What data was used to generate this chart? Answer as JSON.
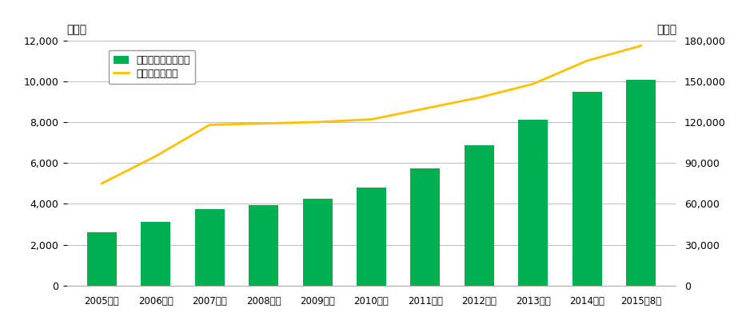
{
  "categories": [
    "2005年度",
    "2006年度",
    "2007年度",
    "2008年度",
    "2009年度",
    "2010年度",
    "2011年度",
    "2012年度",
    "2013年度",
    "2014年度",
    "2015年8月"
  ],
  "bar_values": [
    2600,
    3100,
    3750,
    3950,
    4250,
    4800,
    5750,
    6850,
    8100,
    9500,
    10050
  ],
  "line_values": [
    75000,
    95000,
    118000,
    119000,
    120000,
    122000,
    130000,
    138000,
    148000,
    165000,
    176000
  ],
  "bar_color": "#00B050",
  "line_color": "#FFC000",
  "bar_label": "期末事業地数（地）",
  "line_label": "期末台数（台）",
  "left_ylabel": "（地）",
  "right_ylabel": "（台）",
  "left_ylim": [
    0,
    12000
  ],
  "right_ylim": [
    0,
    180000
  ],
  "left_yticks": [
    0,
    2000,
    4000,
    6000,
    8000,
    10000,
    12000
  ],
  "right_yticks": [
    0,
    30000,
    60000,
    90000,
    120000,
    150000,
    180000
  ],
  "bg_color": "#ffffff",
  "grid_color": "#bbbbbb",
  "line_width": 2.0,
  "bar_width": 0.55
}
